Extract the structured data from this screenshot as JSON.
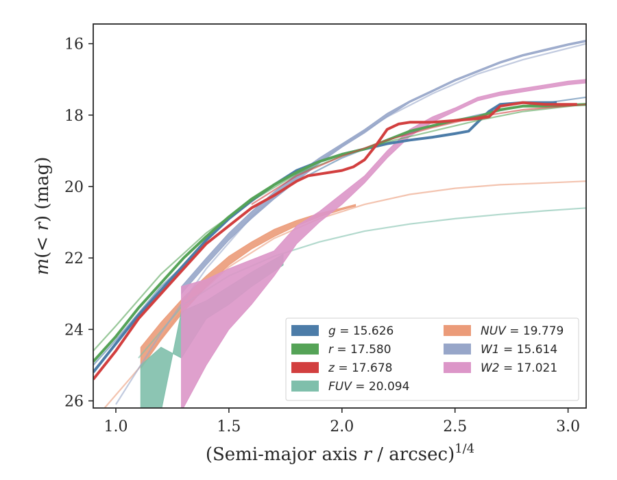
{
  "chart_data": {
    "type": "line",
    "title": "",
    "xlabel": "(Semi-major axis r / arcsec)^{1/4}",
    "ylabel": "m(< r) (mag)",
    "xlim": [
      0.9,
      3.08
    ],
    "ylim": [
      26.2,
      15.45
    ],
    "y_inverted": true,
    "grid": false,
    "legend_position": "lower right",
    "legend_columns": 2,
    "x_ticks": [
      1.0,
      1.5,
      2.0,
      2.5,
      3.0
    ],
    "x_tick_labels": [
      "1.0",
      "1.5",
      "2.0",
      "2.5",
      "3.0"
    ],
    "y_ticks": [
      16,
      18,
      20,
      22,
      24,
      26
    ],
    "y_tick_labels": [
      "16",
      "18",
      "20",
      "22",
      "24",
      "26"
    ],
    "legend": {
      "entries": [
        {
          "band": "g",
          "value": "15.626",
          "color": "#4c7ca8"
        },
        {
          "band": "r",
          "value": "17.580",
          "color": "#55a357"
        },
        {
          "band": "z",
          "value": "17.678",
          "color": "#d23f3f"
        },
        {
          "band": "FUV",
          "value": "20.094",
          "color": "#7fbfab"
        },
        {
          "band": "NUV",
          "value": "19.779",
          "color": "#eb9b79"
        },
        {
          "band": "W1",
          "value": "15.614",
          "color": "#97a6c9"
        },
        {
          "band": "W2",
          "value": "17.021",
          "color": "#dc96c8"
        }
      ]
    },
    "series": [
      {
        "band": "g",
        "color": "#4c7ca8",
        "kind": "profile",
        "x": [
          0.9,
          1.0,
          1.1,
          1.2,
          1.3,
          1.4,
          1.5,
          1.6,
          1.7,
          1.8,
          1.9,
          2.0,
          2.1,
          2.2,
          2.3,
          2.4,
          2.5,
          2.56,
          2.6,
          2.65,
          2.7,
          2.8,
          2.9,
          2.95
        ],
        "y": [
          25.2,
          24.4,
          23.6,
          22.9,
          22.2,
          21.5,
          20.9,
          20.4,
          19.95,
          19.55,
          19.3,
          19.1,
          18.95,
          18.8,
          18.7,
          18.62,
          18.52,
          18.45,
          18.2,
          17.9,
          17.7,
          17.65,
          17.65,
          17.65
        ],
        "model": {
          "x": [
            0.9,
            1.0,
            1.2,
            1.4,
            1.6,
            1.8,
            2.0,
            2.2,
            2.4,
            2.6,
            2.8,
            3.08
          ],
          "y": [
            25.0,
            24.3,
            22.8,
            21.6,
            20.6,
            19.85,
            19.2,
            18.7,
            18.3,
            18.0,
            17.75,
            17.5
          ]
        }
      },
      {
        "band": "r",
        "color": "#55a357",
        "kind": "profile",
        "x": [
          0.9,
          1.0,
          1.1,
          1.2,
          1.3,
          1.4,
          1.5,
          1.6,
          1.7,
          1.8,
          1.9,
          2.0,
          2.1,
          2.2,
          2.3,
          2.4,
          2.5,
          2.6,
          2.7,
          2.8,
          2.9,
          3.08
        ],
        "y": [
          24.9,
          24.2,
          23.4,
          22.7,
          22.0,
          21.4,
          20.85,
          20.35,
          19.95,
          19.6,
          19.3,
          19.1,
          18.95,
          18.7,
          18.45,
          18.3,
          18.15,
          18.05,
          17.85,
          17.75,
          17.75,
          17.7
        ],
        "model": {
          "x": [
            0.9,
            1.0,
            1.2,
            1.4,
            1.6,
            1.8,
            2.0,
            2.2,
            2.4,
            2.6,
            2.8,
            3.08
          ],
          "y": [
            24.6,
            23.9,
            22.45,
            21.3,
            20.4,
            19.65,
            19.15,
            18.75,
            18.45,
            18.15,
            17.9,
            17.7
          ]
        }
      },
      {
        "band": "z",
        "color": "#d23f3f",
        "kind": "profile",
        "x": [
          0.9,
          1.0,
          1.1,
          1.2,
          1.3,
          1.4,
          1.5,
          1.6,
          1.7,
          1.8,
          1.85,
          1.9,
          2.0,
          2.05,
          2.1,
          2.15,
          2.2,
          2.25,
          2.3,
          2.4,
          2.5,
          2.6,
          2.65,
          2.7,
          2.8,
          2.9,
          3.0,
          3.04
        ],
        "y": [
          25.4,
          24.6,
          23.7,
          23.0,
          22.3,
          21.6,
          21.1,
          20.6,
          20.25,
          19.85,
          19.7,
          19.65,
          19.55,
          19.45,
          19.25,
          18.85,
          18.4,
          18.25,
          18.2,
          18.2,
          18.15,
          18.1,
          18.05,
          17.75,
          17.65,
          17.7,
          17.7,
          17.7
        ],
        "model": {
          "x": [
            1.6,
            1.8,
            2.0,
            2.2,
            2.4,
            2.6,
            2.8,
            3.08
          ],
          "y": [
            20.5,
            19.7,
            19.15,
            18.7,
            18.35,
            18.05,
            17.85,
            17.7
          ]
        }
      },
      {
        "band": "FUV",
        "color": "#7fbfab",
        "kind": "band",
        "x": [
          1.11,
          1.2,
          1.29,
          1.4,
          1.5,
          1.6,
          1.74
        ],
        "y_low": [
          26.4,
          26.3,
          23.5,
          23.2,
          22.8,
          22.4,
          21.9
        ],
        "y_high": [
          25.0,
          24.5,
          24.8,
          23.7,
          23.3,
          22.8,
          22.2
        ],
        "model": {
          "x": [
            1.1,
            1.3,
            1.5,
            1.7,
            1.9,
            2.1,
            2.3,
            2.5,
            2.7,
            2.9,
            3.08
          ],
          "y": [
            24.8,
            23.3,
            22.5,
            21.95,
            21.55,
            21.25,
            21.05,
            20.9,
            20.78,
            20.68,
            20.6
          ]
        }
      },
      {
        "band": "NUV",
        "color": "#eb9b79",
        "kind": "band",
        "x": [
          1.11,
          1.2,
          1.3,
          1.4,
          1.5,
          1.6,
          1.7,
          1.8,
          1.9,
          2.0,
          2.06
        ],
        "y_low": [
          25.1,
          24.3,
          23.5,
          22.8,
          22.2,
          21.75,
          21.4,
          21.1,
          20.85,
          20.65,
          20.55
        ],
        "y_high": [
          24.5,
          23.8,
          23.1,
          22.5,
          21.95,
          21.55,
          21.2,
          20.95,
          20.75,
          20.6,
          20.5
        ],
        "model": {
          "x": [
            0.95,
            1.1,
            1.3,
            1.5,
            1.7,
            1.9,
            2.1,
            2.3,
            2.5,
            2.7,
            2.9,
            3.08
          ],
          "y": [
            26.2,
            25.1,
            23.4,
            22.25,
            21.45,
            20.9,
            20.5,
            20.22,
            20.05,
            19.95,
            19.9,
            19.85
          ]
        }
      },
      {
        "band": "W1",
        "color": "#97a6c9",
        "kind": "band",
        "x": [
          1.29,
          1.4,
          1.5,
          1.6,
          1.7,
          1.8,
          1.9,
          2.0,
          2.1,
          2.2,
          2.3,
          2.4,
          2.5,
          2.6,
          2.7,
          2.8,
          2.9,
          3.0,
          3.08
        ],
        "y_low": [
          23.0,
          22.2,
          21.5,
          20.9,
          20.35,
          19.85,
          19.35,
          18.9,
          18.5,
          18.05,
          17.65,
          17.35,
          17.05,
          16.8,
          16.55,
          16.35,
          16.2,
          16.05,
          15.95
        ],
        "y_high": [
          22.8,
          22.0,
          21.3,
          20.7,
          20.15,
          19.65,
          19.2,
          18.8,
          18.4,
          17.95,
          17.6,
          17.3,
          17.0,
          16.75,
          16.5,
          16.3,
          16.15,
          16.0,
          15.9
        ],
        "model": {
          "x": [
            1.0,
            1.2,
            1.4,
            1.6,
            1.8,
            2.0,
            2.2,
            2.4,
            2.6,
            2.8,
            3.08
          ],
          "y": [
            26.1,
            24.1,
            22.3,
            20.85,
            19.75,
            18.85,
            18.05,
            17.4,
            16.85,
            16.45,
            16.0
          ]
        }
      },
      {
        "band": "W2",
        "color": "#dc96c8",
        "kind": "band",
        "x": [
          1.29,
          1.4,
          1.5,
          1.6,
          1.7,
          1.8,
          1.9,
          2.0,
          2.1,
          2.2,
          2.3,
          2.4,
          2.5,
          2.6,
          2.7,
          2.8,
          2.9,
          3.0,
          3.08
        ],
        "y_low": [
          26.3,
          25.0,
          24.0,
          23.3,
          22.5,
          21.6,
          21.0,
          20.5,
          19.9,
          19.2,
          18.6,
          18.2,
          17.9,
          17.6,
          17.45,
          17.35,
          17.25,
          17.15,
          17.1
        ],
        "y_high": [
          22.8,
          22.6,
          22.3,
          22.05,
          21.8,
          21.1,
          20.7,
          20.2,
          19.7,
          19.0,
          18.4,
          18.05,
          17.8,
          17.5,
          17.35,
          17.25,
          17.15,
          17.05,
          17.0
        ]
      }
    ]
  }
}
